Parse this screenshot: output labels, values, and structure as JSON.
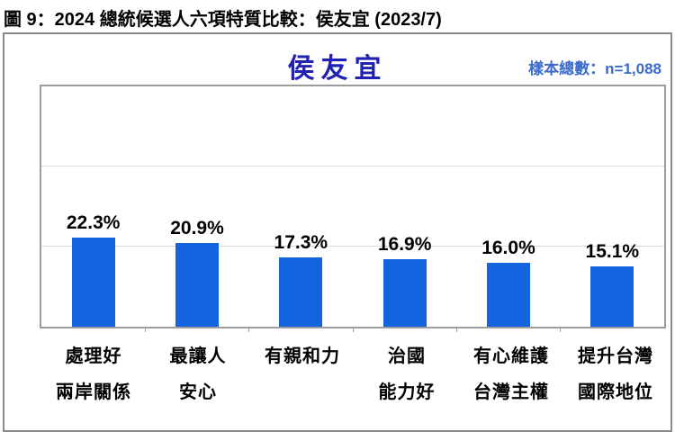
{
  "page": {
    "figure_title": "圖 9：2024 總統候選人六項特質比較：侯友宜 (2023/7)"
  },
  "header": {
    "chart_title": "侯友宜",
    "sample_label": "樣本總數：n=1,088"
  },
  "colors": {
    "bar": "#1463df",
    "chart_title": "#2222b2",
    "sample_label": "#3a6bc9",
    "gridline": "#dbdbdb",
    "frame": "#9c9c9c"
  },
  "chart_data": {
    "type": "bar",
    "title": "侯友宜",
    "subtitle": "樣本總數：n=1,088",
    "categories": [
      [
        "處理好",
        "兩岸關係"
      ],
      [
        "最讓人",
        "安心"
      ],
      [
        "有親和力",
        ""
      ],
      [
        "治國",
        "能力好"
      ],
      [
        "有心維護",
        "台灣主權"
      ],
      [
        "提升台灣",
        "國際地位"
      ]
    ],
    "values": [
      22.3,
      20.9,
      17.3,
      16.9,
      16.0,
      15.1
    ],
    "value_labels": [
      "22.3%",
      "20.9%",
      "17.3%",
      "16.9%",
      "16.0%",
      "15.1%"
    ],
    "unit": "%",
    "xlabel": "",
    "ylabel": "",
    "ylim": [
      0,
      60
    ],
    "gridlines": [
      20,
      40
    ],
    "grid": "horizontal",
    "legend": "none",
    "bar_color": "#1463df"
  }
}
